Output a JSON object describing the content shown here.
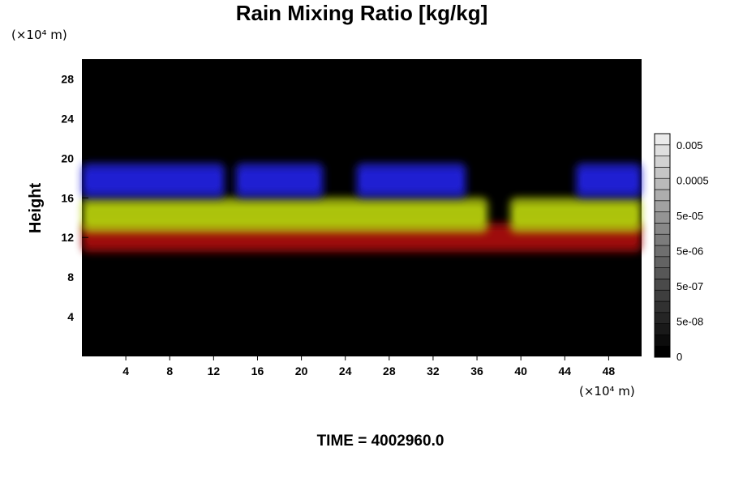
{
  "chart_data": {
    "type": "heatmap",
    "title": "Rain Mixing Ratio [kg/kg]",
    "ylabel": "Height",
    "x_unit": "(×10⁴ m)",
    "y_unit": "(×10⁴ m)",
    "x_ticks": [
      4,
      8,
      12,
      16,
      20,
      24,
      28,
      32,
      36,
      40,
      44,
      48
    ],
    "y_ticks": [
      4,
      8,
      12,
      16,
      20,
      24,
      28
    ],
    "xlim": [
      0,
      51
    ],
    "ylim": [
      0,
      30
    ],
    "colorbar": {
      "tick_labels": [
        "0",
        "5e-08",
        "5e-07",
        "5e-06",
        "5e-05",
        "0.0005",
        "0.005"
      ],
      "levels": 20
    },
    "footer": "TIME = 4002960.0",
    "layers": [
      {
        "name": "",
        "color": "#2424e0",
        "y_range": [
          16,
          19.5
        ],
        "x_extents": [
          [
            0,
            13
          ],
          [
            14,
            22
          ],
          [
            25,
            35
          ],
          [
            45,
            51
          ]
        ]
      },
      {
        "name": "",
        "color": "#b8d010",
        "y_range": [
          12.5,
          16
        ],
        "x_extents": [
          [
            0,
            37
          ],
          [
            39,
            51
          ]
        ]
      },
      {
        "name": "",
        "color": "#a81010",
        "y_range": [
          10.5,
          13.5
        ],
        "x_extents": [
          [
            0,
            51
          ]
        ]
      }
    ]
  }
}
